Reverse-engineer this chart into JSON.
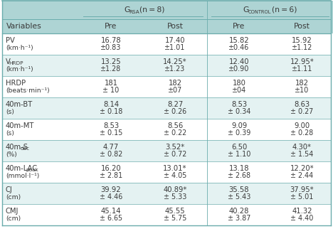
{
  "rows": [
    {
      "var_line1": "PV",
      "var_line1_sub": null,
      "var_line2": "(km·h⁻¹)",
      "vals": [
        "16.78",
        "17.40",
        "15.82",
        "15.92"
      ],
      "sds": [
        "±0.83",
        "±1.01",
        "±0.46",
        "±1.12"
      ],
      "shaded": false
    },
    {
      "var_line1": "V",
      "var_line1_sub": "HRDP",
      "var_line2": "(km·h⁻¹)",
      "vals": [
        "13.25",
        "14.25*",
        "12.40",
        "12.95*"
      ],
      "sds": [
        "±1.28",
        "±1.23",
        "±0.90",
        "±1.11"
      ],
      "shaded": true
    },
    {
      "var_line1": "HRDP",
      "var_line1_sub": null,
      "var_line2": "(beats·min⁻¹)",
      "vals": [
        "181",
        "182",
        "180",
        "182"
      ],
      "sds": [
        "± 10",
        "±07",
        "±04",
        "±10"
      ],
      "shaded": false
    },
    {
      "var_line1": "40m-BT",
      "var_line1_sub": null,
      "var_line2": "(s)",
      "vals": [
        "8.14",
        "8.27",
        "8.53",
        "8.63"
      ],
      "sds": [
        "± 0.18",
        "± 0.26",
        "± 0.34",
        "± 0.27"
      ],
      "shaded": true
    },
    {
      "var_line1": "40m-MT",
      "var_line1_sub": null,
      "var_line2": "(s)",
      "vals": [
        "8.53",
        "8.56",
        "9.09",
        "9.00"
      ],
      "sds": [
        "± 0.15",
        "± 0.22",
        "± 0.39",
        "± 0.28"
      ],
      "shaded": false
    },
    {
      "var_line1": "40m-S",
      "var_line1_sub": "dec",
      "var_line2": "(%)",
      "vals": [
        "4.77",
        "3.52*",
        "6.50",
        "4.30*"
      ],
      "sds": [
        "± 0.82",
        "± 0.72",
        "± 1.10",
        "± 1.54"
      ],
      "shaded": true
    },
    {
      "var_line1": "40m-LAC",
      "var_line1_sub": "peak",
      "var_line2": "(mmol·l⁻¹)",
      "vals": [
        "16.20",
        "13.01*",
        "13.18",
        "12.20*"
      ],
      "sds": [
        "± 2.81",
        "± 4.05",
        "± 2.68",
        "± 2.44"
      ],
      "shaded": false
    },
    {
      "var_line1": "CJ",
      "var_line1_sub": null,
      "var_line2": "(cm)",
      "vals": [
        "39.92",
        "40.89*",
        "35.58",
        "37.95*"
      ],
      "sds": [
        "± 4.46",
        "± 5.33",
        "± 5.43",
        "± 5.01"
      ],
      "shaded": true
    },
    {
      "var_line1": "CMJ",
      "var_line1_sub": null,
      "var_line2": "(cm)",
      "vals": [
        "45.14",
        "45.55",
        "40.28",
        "41.32"
      ],
      "sds": [
        "± 6.65",
        "± 5.75",
        "± 3.87",
        "± 4.40"
      ],
      "shaded": false
    }
  ],
  "header_bg": "#aed4d4",
  "shaded_bg": "#e4f2f2",
  "white_bg": "#ffffff",
  "border_color": "#6aacac",
  "text_color": "#3a3a3a",
  "font_size": 7.2,
  "sub_font_size": 5.2,
  "header_font_size": 7.8
}
